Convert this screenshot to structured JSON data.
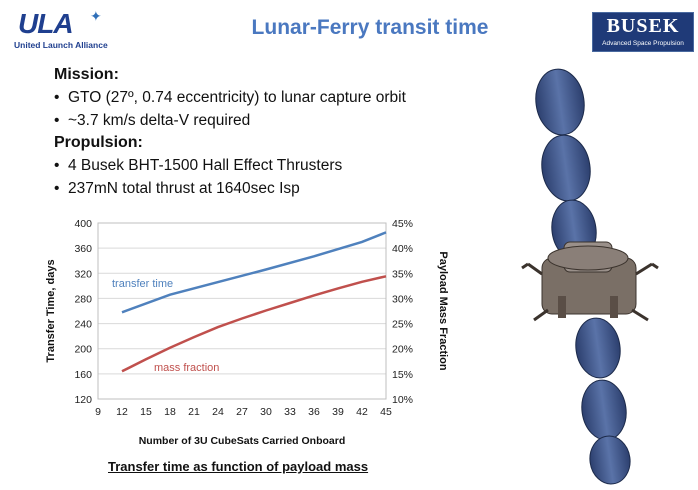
{
  "header": {
    "ula_logo_text": "ULA",
    "ula_logo_sub": "United Launch Alliance",
    "title": "Lunar-Ferry transit time",
    "busek_logo_text": "BUSEK",
    "busek_logo_sub": "Advanced Space Propulsion"
  },
  "mission": {
    "heading": "Mission:",
    "items": [
      "GTO (27º, 0.74 eccentricity) to lunar capture orbit",
      "~3.7 km/s delta-V required"
    ]
  },
  "propulsion": {
    "heading": "Propulsion:",
    "items": [
      "4 Busek BHT-1500 Hall Effect Thrusters",
      "237mN total thrust at 1640sec Isp"
    ]
  },
  "caption": "Transfer time as function of payload mass",
  "colors": {
    "transfer": "#4f81bd",
    "mass": "#c0504d",
    "title": "#4a78c0",
    "brand": "#1f3f8f"
  },
  "chart_data": {
    "type": "line",
    "xlabel": "Number of 3U CubeSats Carried Onboard",
    "ylabel": "Transfer Time, days",
    "y2label": "Payload Mass Fraction",
    "x_ticks": [
      "9",
      "12",
      "15",
      "18",
      "21",
      "24",
      "27",
      "30",
      "33",
      "36",
      "39",
      "42",
      "45"
    ],
    "y_ticks": [
      "120",
      "160",
      "200",
      "240",
      "280",
      "320",
      "360",
      "400"
    ],
    "y2_ticks": [
      "10%",
      "15%",
      "20%",
      "25%",
      "30%",
      "35%",
      "40%",
      "45%"
    ],
    "xlim": [
      9,
      45
    ],
    "ylim": [
      120,
      400
    ],
    "y2lim": [
      10,
      45
    ],
    "grid": "horizontal",
    "series": [
      {
        "name": "transfer time",
        "axis": "left",
        "x": [
          12,
          18,
          24,
          30,
          36,
          42,
          45
        ],
        "y": [
          258,
          286,
          306,
          326,
          347,
          370,
          385
        ]
      },
      {
        "name": "mass fraction",
        "axis": "right",
        "x": [
          12,
          15,
          18,
          21,
          24,
          27,
          30,
          33,
          36,
          39,
          42,
          45
        ],
        "y": [
          15.5,
          17.9,
          20.2,
          22.3,
          24.3,
          26.0,
          27.6,
          29.1,
          30.6,
          32.0,
          33.3,
          34.4
        ]
      }
    ]
  }
}
